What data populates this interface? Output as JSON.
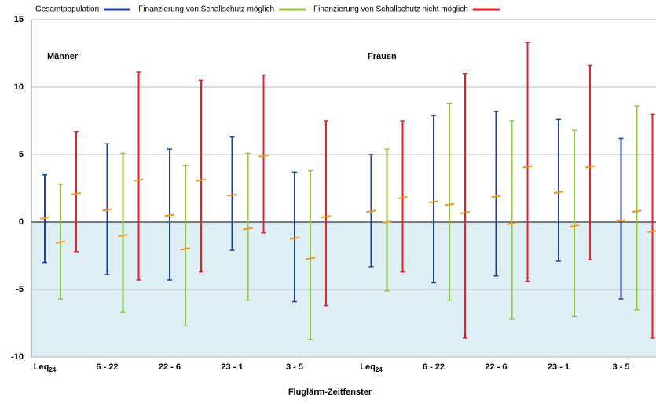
{
  "chart_data": {
    "type": "errorbar",
    "x_label": "Fluglärm-Zeitfenster",
    "annotations": [
      "Männer",
      "Frauen"
    ],
    "categories": [
      "Leq24",
      "6 - 22",
      "22 - 6",
      "23 - 1",
      "3 - 5",
      "Leq24",
      "6 - 22",
      "22 - 6",
      "23 - 1",
      "3 - 5"
    ],
    "estimate_color": "#f7941d",
    "series": [
      {
        "name": "Gesamtpopulation",
        "color": "#1f3f99",
        "values": [
          0.3,
          0.9,
          0.5,
          2.0,
          -1.2,
          0.8,
          1.5,
          1.9,
          2.2,
          0.1
        ],
        "lower": [
          -3.0,
          -3.9,
          -4.3,
          -2.1,
          -5.9,
          -3.3,
          -4.5,
          -4.0,
          -2.9,
          -5.7
        ],
        "upper": [
          3.5,
          5.8,
          5.4,
          6.3,
          3.7,
          5.0,
          7.9,
          8.2,
          7.6,
          6.2
        ]
      },
      {
        "name": "Finanzierung von Schallschutz möglich",
        "color": "#8dc63f",
        "values": [
          -1.5,
          -1.0,
          -2.0,
          -0.5,
          -2.7,
          0.0,
          1.3,
          -0.1,
          -0.3,
          0.8
        ],
        "lower": [
          -5.7,
          -6.7,
          -7.7,
          -5.8,
          -8.7,
          -5.1,
          -5.8,
          -7.2,
          -7.0,
          -6.5
        ],
        "upper": [
          2.8,
          5.1,
          4.2,
          5.1,
          3.8,
          5.4,
          8.8,
          7.5,
          6.8,
          8.6
        ]
      },
      {
        "name": "Finanzierung von Schallschutz nicht möglich",
        "color": "#e8202a",
        "values": [
          2.1,
          3.1,
          3.1,
          4.9,
          0.4,
          1.8,
          0.7,
          4.1,
          4.1,
          -0.7
        ],
        "lower": [
          -2.2,
          -4.3,
          -3.7,
          -0.8,
          -6.2,
          -3.7,
          -8.6,
          -4.4,
          -2.8,
          -8.6
        ],
        "upper": [
          6.7,
          11.1,
          10.5,
          10.9,
          7.5,
          7.5,
          11.0,
          13.3,
          11.6,
          8.0
        ]
      }
    ],
    "ylim": [
      -10,
      15
    ],
    "yticks": [
      -10,
      -5,
      0,
      5,
      10,
      15
    ],
    "grid": true
  }
}
